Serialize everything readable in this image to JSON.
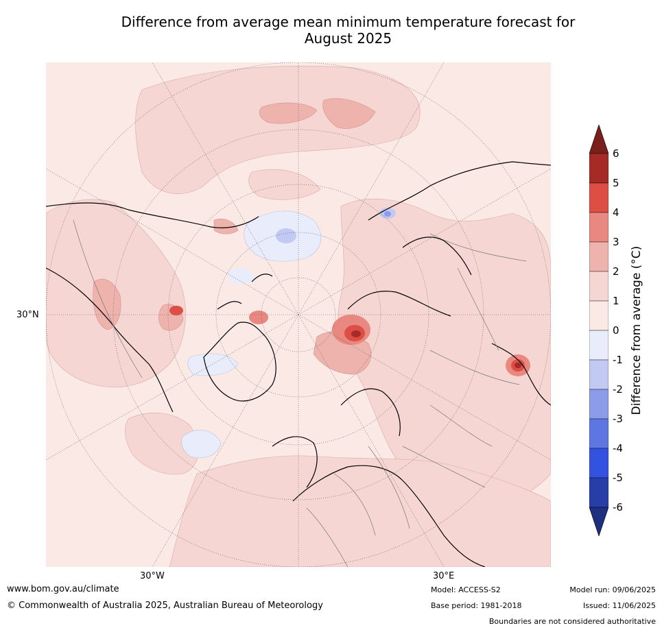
{
  "title_line1": "Difference from average mean minimum temperature forecast for",
  "title_line2": "August 2025",
  "map": {
    "lat_label": "30°N",
    "lon_label_left": "30°W",
    "lon_label_right": "30°E"
  },
  "colorbar": {
    "label": "Difference from average (°C)",
    "ticks": [
      "6",
      "5",
      "4",
      "3",
      "2",
      "1",
      "0",
      "-1",
      "-2",
      "-3",
      "-4",
      "-5",
      "-6"
    ],
    "colors": [
      "#a62a26",
      "#dd4f45",
      "#e88880",
      "#eeb3ad",
      "#f5d6d2",
      "#fbe9e6",
      "#e9edfb",
      "#c2c9f2",
      "#8c9ce9",
      "#5e76e2",
      "#3352e0",
      "#273da8"
    ],
    "top_arrow_color": "#7b1f1c",
    "bottom_arrow_color": "#1f2f80"
  },
  "footer": {
    "url": "www.bom.gov.au/climate",
    "copyright": "© Commonwealth of Australia 2025, Australian Bureau of Meteorology",
    "model": "Model: ACCESS-S2",
    "base_period": "Base period: 1981-2018",
    "model_run": "Model run: 09/06/2025",
    "issued": "Issued: 11/06/2025",
    "disclaimer": "Boundaries are not considered authoritative"
  }
}
